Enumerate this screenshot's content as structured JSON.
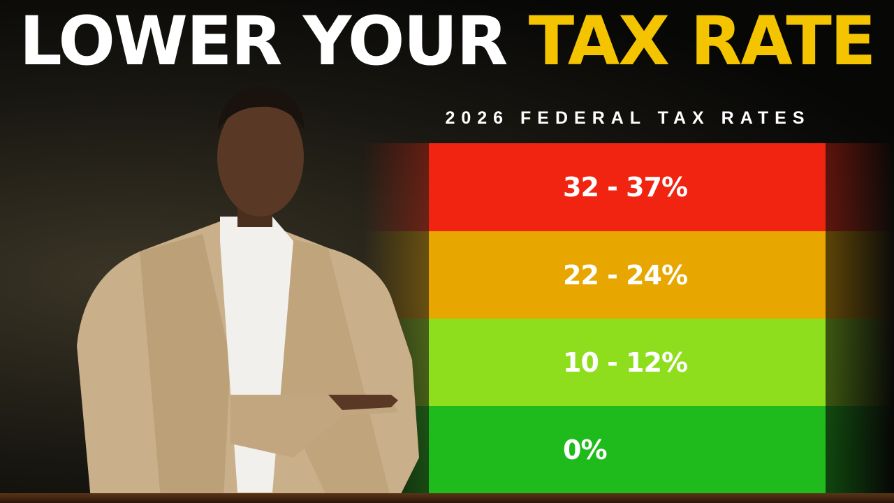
{
  "headline": {
    "part1": "LOWER YOUR ",
    "part2": "TAX RATE"
  },
  "subtitle": "2026 FEDERAL TAX RATES",
  "brackets": [
    {
      "label": "32 - 37%",
      "color": "#f02410"
    },
    {
      "label": "22 - 24%",
      "color": "#e8a600"
    },
    {
      "label": "10 - 12%",
      "color": "#8fde1e"
    },
    {
      "label": "0%",
      "color": "#1fbb1c"
    }
  ],
  "colors": {
    "headline_accent": "#f5c400",
    "text": "#ffffff"
  }
}
